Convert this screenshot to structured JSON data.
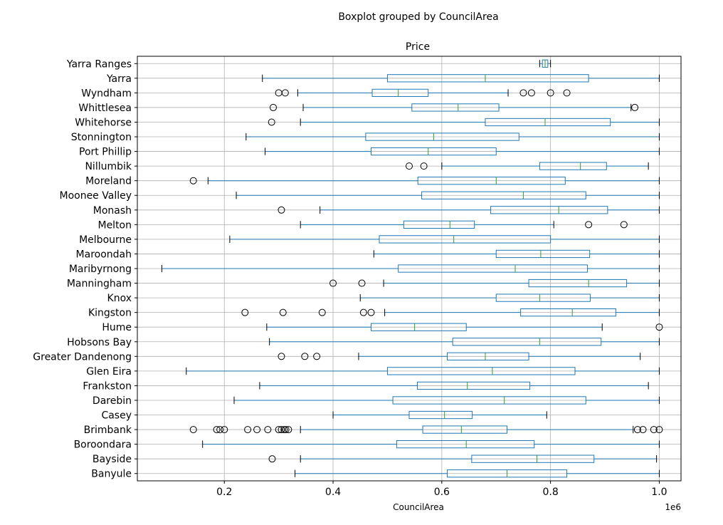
{
  "chart_data": {
    "type": "boxplot",
    "orientation": "horizontal",
    "suptitle": "Boxplot grouped by CouncilArea",
    "title": "Price",
    "xlabel": "CouncilArea",
    "x_offset_label": "1e6",
    "xlim": [
      0.04,
      1.04
    ],
    "xticks": [
      0.2,
      0.4,
      0.6,
      0.8,
      1.0
    ],
    "xtick_labels": [
      "0.2",
      "0.4",
      "0.6",
      "0.8",
      "1.0"
    ],
    "grid": true,
    "colors": {
      "box": "#1f77b4",
      "median": "#2ca02c",
      "cap": "#000000",
      "flier": "#000000",
      "grid": "#b0b0b0"
    },
    "groups": [
      {
        "name": "Yarra Ranges",
        "wlo": 0.78,
        "q1": 0.785,
        "med": 0.79,
        "q3": 0.795,
        "whi": 0.8,
        "fliers": []
      },
      {
        "name": "Yarra",
        "wlo": 0.27,
        "q1": 0.5,
        "med": 0.68,
        "q3": 0.87,
        "whi": 1.0,
        "fliers": []
      },
      {
        "name": "Wyndham",
        "wlo": 0.335,
        "q1": 0.472,
        "med": 0.52,
        "q3": 0.575,
        "whi": 0.722,
        "fliers": [
          0.3,
          0.312,
          0.75,
          0.765,
          0.8,
          0.83
        ]
      },
      {
        "name": "Whittlesea",
        "wlo": 0.345,
        "q1": 0.545,
        "med": 0.63,
        "q3": 0.705,
        "whi": 0.948,
        "fliers": [
          0.29,
          0.955
        ]
      },
      {
        "name": "Whitehorse",
        "wlo": 0.34,
        "q1": 0.68,
        "med": 0.79,
        "q3": 0.91,
        "whi": 1.0,
        "fliers": [
          0.287
        ]
      },
      {
        "name": "Stonnington",
        "wlo": 0.24,
        "q1": 0.46,
        "med": 0.585,
        "q3": 0.742,
        "whi": 1.0,
        "fliers": []
      },
      {
        "name": "Port Phillip",
        "wlo": 0.275,
        "q1": 0.47,
        "med": 0.575,
        "q3": 0.7,
        "whi": 1.0,
        "fliers": []
      },
      {
        "name": "Nillumbik",
        "wlo": 0.6,
        "q1": 0.78,
        "med": 0.855,
        "q3": 0.903,
        "whi": 0.98,
        "fliers": [
          0.54,
          0.567
        ]
      },
      {
        "name": "Moreland",
        "wlo": 0.17,
        "q1": 0.556,
        "med": 0.7,
        "q3": 0.827,
        "whi": 1.0,
        "fliers": [
          0.143
        ]
      },
      {
        "name": "Moonee Valley",
        "wlo": 0.222,
        "q1": 0.563,
        "med": 0.75,
        "q3": 0.865,
        "whi": 1.0,
        "fliers": []
      },
      {
        "name": "Monash",
        "wlo": 0.376,
        "q1": 0.69,
        "med": 0.815,
        "q3": 0.905,
        "whi": 1.0,
        "fliers": [
          0.305
        ]
      },
      {
        "name": "Melton",
        "wlo": 0.34,
        "q1": 0.53,
        "med": 0.615,
        "q3": 0.66,
        "whi": 0.806,
        "fliers": [
          0.87,
          0.935
        ]
      },
      {
        "name": "Melbourne",
        "wlo": 0.21,
        "q1": 0.485,
        "med": 0.622,
        "q3": 0.8,
        "whi": 1.0,
        "fliers": []
      },
      {
        "name": "Maroondah",
        "wlo": 0.475,
        "q1": 0.7,
        "med": 0.782,
        "q3": 0.872,
        "whi": 1.0,
        "fliers": []
      },
      {
        "name": "Maribyrnong",
        "wlo": 0.085,
        "q1": 0.52,
        "med": 0.735,
        "q3": 0.868,
        "whi": 1.0,
        "fliers": []
      },
      {
        "name": "Manningham",
        "wlo": 0.493,
        "q1": 0.76,
        "med": 0.87,
        "q3": 0.94,
        "whi": 1.0,
        "fliers": [
          0.4,
          0.453
        ]
      },
      {
        "name": "Knox",
        "wlo": 0.45,
        "q1": 0.7,
        "med": 0.78,
        "q3": 0.873,
        "whi": 1.0,
        "fliers": []
      },
      {
        "name": "Kingston",
        "wlo": 0.495,
        "q1": 0.745,
        "med": 0.84,
        "q3": 0.92,
        "whi": 1.0,
        "fliers": [
          0.238,
          0.308,
          0.38,
          0.456,
          0.47
        ]
      },
      {
        "name": "Hume",
        "wlo": 0.278,
        "q1": 0.47,
        "med": 0.55,
        "q3": 0.645,
        "whi": 0.895,
        "fliers": [
          1.0
        ]
      },
      {
        "name": "Hobsons Bay",
        "wlo": 0.283,
        "q1": 0.62,
        "med": 0.78,
        "q3": 0.893,
        "whi": 1.0,
        "fliers": []
      },
      {
        "name": "Greater Dandenong",
        "wlo": 0.447,
        "q1": 0.61,
        "med": 0.68,
        "q3": 0.76,
        "whi": 0.965,
        "fliers": [
          0.305,
          0.348,
          0.37
        ]
      },
      {
        "name": "Glen Eira",
        "wlo": 0.13,
        "q1": 0.5,
        "med": 0.693,
        "q3": 0.845,
        "whi": 1.0,
        "fliers": []
      },
      {
        "name": "Frankston",
        "wlo": 0.265,
        "q1": 0.555,
        "med": 0.647,
        "q3": 0.762,
        "whi": 0.98,
        "fliers": []
      },
      {
        "name": "Darebin",
        "wlo": 0.218,
        "q1": 0.51,
        "med": 0.715,
        "q3": 0.865,
        "whi": 1.0,
        "fliers": []
      },
      {
        "name": "Casey",
        "wlo": 0.4,
        "q1": 0.54,
        "med": 0.605,
        "q3": 0.656,
        "whi": 0.793,
        "fliers": []
      },
      {
        "name": "Brimbank",
        "wlo": 0.34,
        "q1": 0.565,
        "med": 0.636,
        "q3": 0.72,
        "whi": 0.952,
        "fliers": [
          0.143,
          0.186,
          0.192,
          0.2,
          0.243,
          0.26,
          0.28,
          0.3,
          0.305,
          0.31,
          0.313,
          0.318,
          0.96,
          0.97,
          0.99,
          1.0
        ]
      },
      {
        "name": "Boroondara",
        "wlo": 0.16,
        "q1": 0.517,
        "med": 0.645,
        "q3": 0.77,
        "whi": 1.0,
        "fliers": []
      },
      {
        "name": "Bayside",
        "wlo": 0.34,
        "q1": 0.655,
        "med": 0.775,
        "q3": 0.88,
        "whi": 0.995,
        "fliers": [
          0.288
        ]
      },
      {
        "name": "Banyule",
        "wlo": 0.33,
        "q1": 0.61,
        "med": 0.72,
        "q3": 0.83,
        "whi": 1.0,
        "fliers": []
      }
    ]
  }
}
